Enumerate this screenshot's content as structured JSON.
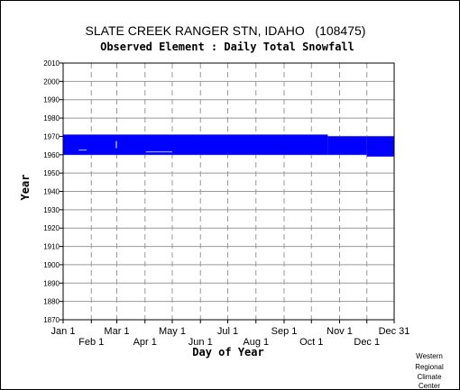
{
  "chart_data": {
    "type": "bar",
    "title": "SLATE CREEK RANGER STN, IDAHO   (108475)",
    "subtitle": "Observed Element : Daily Total Snowfall",
    "xlabel": "Day of Year",
    "ylabel": "Year",
    "xlim": [
      1,
      365
    ],
    "ylim": [
      1870,
      2010
    ],
    "yticks": [
      1870,
      1880,
      1890,
      1900,
      1910,
      1920,
      1930,
      1940,
      1950,
      1960,
      1970,
      1980,
      1990,
      2000,
      2010
    ],
    "xticks_top": [
      {
        "label": "Jan 1",
        "day": 1
      },
      {
        "label": "Mar 1",
        "day": 60
      },
      {
        "label": "May 1",
        "day": 121
      },
      {
        "label": "Jul 1",
        "day": 182
      },
      {
        "label": "Sep 1",
        "day": 244
      },
      {
        "label": "Nov 1",
        "day": 305
      },
      {
        "label": "Dec 31",
        "day": 365
      }
    ],
    "xticks_bottom": [
      {
        "label": "Feb 1",
        "day": 32
      },
      {
        "label": "Apr 1",
        "day": 91
      },
      {
        "label": "Jun 1",
        "day": 152
      },
      {
        "label": "Aug 1",
        "day": 213
      },
      {
        "label": "Oct 1",
        "day": 274
      },
      {
        "label": "Dec 1",
        "day": 335
      }
    ],
    "grid": true,
    "series_color": "#0000ff",
    "coverage": [
      {
        "start_day": 1,
        "end_day": 292,
        "start_year": 1960,
        "end_year": 1971
      },
      {
        "start_day": 292,
        "end_day": 335,
        "start_year": 1960,
        "end_year": 1970
      },
      {
        "start_day": 335,
        "end_day": 365,
        "start_year": 1959,
        "end_year": 1970
      }
    ],
    "gaps": [
      {
        "start_day": 18,
        "end_day": 27,
        "start_year": 1962,
        "end_year": 1963
      },
      {
        "start_day": 92,
        "end_day": 121,
        "start_year": 1961,
        "end_year": 1962
      },
      {
        "start_day": 59,
        "end_day": 60,
        "start_year": 1960,
        "end_year": 1971
      }
    ]
  },
  "credit": [
    "Western",
    "Regional",
    "Climate",
    "Center"
  ]
}
